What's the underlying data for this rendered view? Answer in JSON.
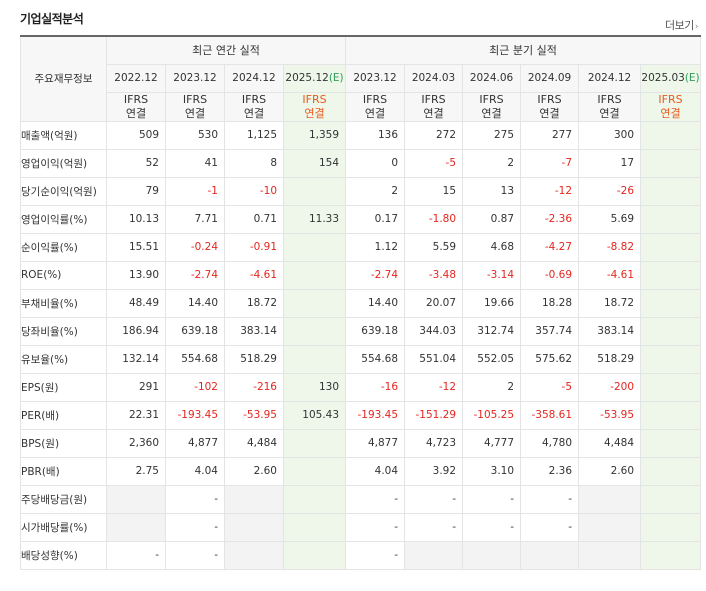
{
  "title": "기업실적분석",
  "more_label": "더보기",
  "corner_label": "주요재무정보",
  "groups": {
    "annual": "최근 연간 실적",
    "quarterly": "최근 분기 실적"
  },
  "periods": [
    {
      "label": "2022.12",
      "est": false
    },
    {
      "label": "2023.12",
      "est": false
    },
    {
      "label": "2024.12",
      "est": false
    },
    {
      "label": "2025.12",
      "est": true
    },
    {
      "label": "2023.12",
      "est": false
    },
    {
      "label": "2024.03",
      "est": false
    },
    {
      "label": "2024.06",
      "est": false
    },
    {
      "label": "2024.09",
      "est": false
    },
    {
      "label": "2024.12",
      "est": false
    },
    {
      "label": "2025.03",
      "est": true
    }
  ],
  "est_marker": "(E)",
  "ifrs_top": "IFRS",
  "ifrs_bottom": "연결",
  "rows": [
    {
      "label": "매출액(억원)",
      "values": [
        "509",
        "530",
        "1,125",
        "1,359",
        "136",
        "272",
        "275",
        "277",
        "300",
        ""
      ],
      "sep": false
    },
    {
      "label": "영업이익(억원)",
      "values": [
        "52",
        "41",
        "8",
        "154",
        "0",
        "-5",
        "2",
        "-7",
        "17",
        ""
      ],
      "sep": false
    },
    {
      "label": "당기순이익(억원)",
      "values": [
        "79",
        "-1",
        "-10",
        "",
        "2",
        "15",
        "13",
        "-12",
        "-26",
        ""
      ],
      "sep": false
    },
    {
      "label": "영업이익률(%)",
      "values": [
        "10.13",
        "7.71",
        "0.71",
        "11.33",
        "0.17",
        "-1.80",
        "0.87",
        "-2.36",
        "5.69",
        ""
      ],
      "sep": true
    },
    {
      "label": "순이익률(%)",
      "values": [
        "15.51",
        "-0.24",
        "-0.91",
        "",
        "1.12",
        "5.59",
        "4.68",
        "-4.27",
        "-8.82",
        ""
      ],
      "sep": false
    },
    {
      "label": "ROE(%)",
      "values": [
        "13.90",
        "-2.74",
        "-4.61",
        "",
        "-2.74",
        "-3.48",
        "-3.14",
        "-0.69",
        "-4.61",
        ""
      ],
      "sep": false
    },
    {
      "label": "부채비율(%)",
      "values": [
        "48.49",
        "14.40",
        "18.72",
        "",
        "14.40",
        "20.07",
        "19.66",
        "18.28",
        "18.72",
        ""
      ],
      "sep": true
    },
    {
      "label": "당좌비율(%)",
      "values": [
        "186.94",
        "639.18",
        "383.14",
        "",
        "639.18",
        "344.03",
        "312.74",
        "357.74",
        "383.14",
        ""
      ],
      "sep": false
    },
    {
      "label": "유보율(%)",
      "values": [
        "132.14",
        "554.68",
        "518.29",
        "",
        "554.68",
        "551.04",
        "552.05",
        "575.62",
        "518.29",
        ""
      ],
      "sep": false
    },
    {
      "label": "EPS(원)",
      "values": [
        "291",
        "-102",
        "-216",
        "130",
        "-16",
        "-12",
        "2",
        "-5",
        "-200",
        ""
      ],
      "sep": true
    },
    {
      "label": "PER(배)",
      "values": [
        "22.31",
        "-193.45",
        "-53.95",
        "105.43",
        "-193.45",
        "-151.29",
        "-105.25",
        "-358.61",
        "-53.95",
        ""
      ],
      "sep": false
    },
    {
      "label": "BPS(원)",
      "values": [
        "2,360",
        "4,877",
        "4,484",
        "",
        "4,877",
        "4,723",
        "4,777",
        "4,780",
        "4,484",
        ""
      ],
      "sep": false
    },
    {
      "label": "PBR(배)",
      "values": [
        "2.75",
        "4.04",
        "2.60",
        "",
        "4.04",
        "3.92",
        "3.10",
        "2.36",
        "2.60",
        ""
      ],
      "sep": false
    },
    {
      "label": "주당배당금(원)",
      "values": [
        "",
        "-",
        "",
        "",
        "-",
        "-",
        "-",
        "-",
        "",
        ""
      ],
      "sep": true,
      "empty": [
        0,
        2,
        8
      ]
    },
    {
      "label": "시가배당률(%)",
      "values": [
        "",
        "-",
        "",
        "",
        "-",
        "-",
        "-",
        "-",
        "",
        ""
      ],
      "sep": false,
      "empty": [
        0,
        2,
        8
      ]
    },
    {
      "label": "배당성향(%)",
      "values": [
        "-",
        "-",
        "",
        "",
        "-",
        "",
        "",
        "",
        "",
        ""
      ],
      "sep": false,
      "empty": [
        2,
        5,
        6,
        7,
        8
      ]
    }
  ]
}
